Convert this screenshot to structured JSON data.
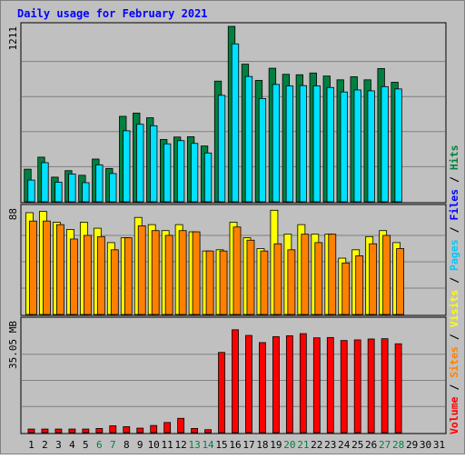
{
  "chart_data": {
    "type": "bar",
    "title": "Daily usage for February 2021",
    "categories": [
      "1",
      "2",
      "3",
      "4",
      "5",
      "6",
      "7",
      "8",
      "9",
      "10",
      "11",
      "12",
      "13",
      "14",
      "15",
      "16",
      "17",
      "18",
      "19",
      "20",
      "21",
      "22",
      "23",
      "24",
      "25",
      "26",
      "27",
      "28",
      "29",
      "30",
      "31"
    ],
    "weekend_days": [
      "6",
      "7",
      "13",
      "14",
      "20",
      "21",
      "27",
      "28"
    ],
    "panels": [
      {
        "name": "hits-files-pages",
        "ytick_label": "1211",
        "ymax": 1211,
        "series": [
          {
            "name": "Hits",
            "color": "#008040",
            "values": [
              225,
              308,
              170,
              215,
              183,
              295,
              230,
              590,
              612,
              580,
              430,
              447,
              449,
              385,
              833,
              1211,
              950,
              838,
              922,
              880,
              877,
              889,
              868,
              842,
              863,
              842,
              920,
              825,
              null,
              null,
              null
            ]
          },
          {
            "name": "Files",
            "color": "#00e0ff",
            "values": [
              150,
              270,
              135,
              192,
              132,
              255,
              195,
              490,
              535,
              525,
              400,
              422,
              403,
              337,
              735,
              1090,
              865,
              713,
              810,
              800,
              802,
              800,
              789,
              758,
              772,
              766,
              795,
              779,
              null,
              null,
              null
            ]
          },
          {
            "name": "Pages",
            "color": "#0000ff",
            "values": [
              0,
              0,
              0,
              0,
              0,
              0,
              0,
              0,
              0,
              0,
              0,
              0,
              0,
              0,
              0,
              0,
              0,
              0,
              0,
              0,
              0,
              0,
              0,
              0,
              0,
              0,
              0,
              0,
              null,
              null,
              null
            ]
          }
        ]
      },
      {
        "name": "visits-sites",
        "ytick_label": "88",
        "ymax": 88,
        "series": [
          {
            "name": "Visits",
            "color": "#ffff00",
            "values": [
              85,
              86,
              77,
              71,
              77,
              72,
              60,
              64,
              81,
              75,
              70,
              75,
              69,
              53,
              54,
              77,
              64,
              55,
              87,
              67,
              75,
              67,
              67,
              47,
              54,
              65,
              70,
              60,
              null,
              null,
              null
            ]
          },
          {
            "name": "Sites",
            "color": "#ff8000",
            "values": [
              78,
              78,
              75,
              63,
              66,
              65,
              54,
              64,
              74,
              70,
              66,
              70,
              69,
              53,
              53,
              73,
              62,
              53,
              59,
              54,
              67,
              60,
              67,
              43,
              49,
              59,
              66,
              55,
              null,
              null,
              null
            ]
          }
        ]
      },
      {
        "name": "volume",
        "ytick_label": "35.05 MB",
        "ymax": 35.05,
        "series": [
          {
            "name": "Volume",
            "color": "#ff0000",
            "values": [
              1.2,
              1.2,
              1.2,
              1.2,
              1.2,
              1.4,
              2.3,
              2.0,
              1.5,
              2.4,
              3.4,
              4.8,
              1.4,
              1.0,
              26.9,
              34.5,
              32.6,
              30.2,
              32.2,
              32.5,
              33.2,
              31.8,
              31.9,
              30.9,
              31.1,
              31.4,
              31.5,
              29.8,
              null,
              null,
              null
            ]
          }
        ]
      }
    ],
    "right_label": [
      {
        "text": "Volume",
        "color": "#ff0000"
      },
      {
        "text": " / ",
        "color": "#000000"
      },
      {
        "text": "Sites",
        "color": "#ff8000"
      },
      {
        "text": " / ",
        "color": "#000000"
      },
      {
        "text": "Visits",
        "color": "#ffff00"
      },
      {
        "text": " / ",
        "color": "#000000"
      },
      {
        "text": "Pages",
        "color": "#00c8ff"
      },
      {
        "text": " / ",
        "color": "#000000"
      },
      {
        "text": "Files",
        "color": "#0000ff"
      },
      {
        "text": " / ",
        "color": "#000000"
      },
      {
        "text": "Hits",
        "color": "#008040"
      }
    ],
    "grid": true,
    "legend": "right"
  },
  "colors": {
    "title": "#0000ff",
    "plot_bg": "#c0c0c0",
    "frame": "#000000",
    "weekday_label": "#000000",
    "weekend_label": "#008040"
  }
}
